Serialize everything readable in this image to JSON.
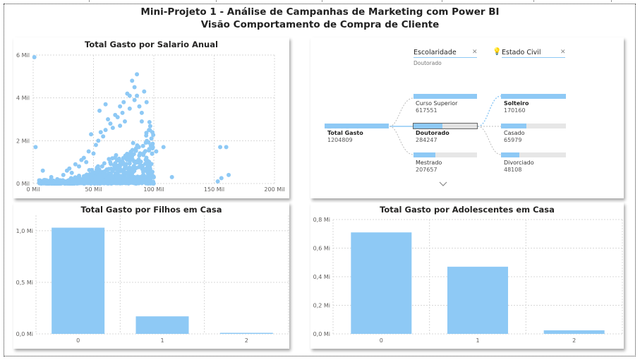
{
  "header": {
    "line1": "Mini-Projeto 1 - Análise de Campanhas de Marketing com Power BI",
    "line2": "Visão Comportamento de Compra de Cliente"
  },
  "colors": {
    "bar": "#8ec9f5",
    "grid": "#d8d8d8",
    "track": "#e6e6e6",
    "axis_text": "#605e5c"
  },
  "scatter": {
    "title": "Total Gasto por Salario Anual",
    "x_ticks": [
      "0 Mil",
      "50 Mil",
      "100 Mil",
      "150 Mil",
      "200 Mil"
    ],
    "y_ticks": [
      "0 Mil",
      "2 Mil",
      "4 Mil",
      "6 Mil"
    ]
  },
  "children_chart": {
    "title": "Total Gasto por Filhos em Casa",
    "y_ticks": [
      "0,0 Mi",
      "0,5 Mi",
      "1,0 Mi"
    ]
  },
  "teens_chart": {
    "title": "Total Gasto por Adolescentes em Casa",
    "y_ticks": [
      "0,0 Mi",
      "0,2 Mi",
      "0,4 Mi",
      "0,6 Mi",
      "0,8 Mi"
    ]
  },
  "decomposition": {
    "level1_header": "Escolaridade",
    "level1_selected": "Doutorado",
    "level2_header": "Estado Civil",
    "root": {
      "label": "Total Gasto",
      "value": "1204809"
    },
    "level1": [
      {
        "label": "Curso Superior",
        "value": "617551",
        "fraction": 1.0
      },
      {
        "label": "Doutorado",
        "value": "284247",
        "fraction": 0.46
      },
      {
        "label": "Mestrado",
        "value": "207657",
        "fraction": 0.34
      }
    ],
    "level2": [
      {
        "label": "Solteiro",
        "value": "170160",
        "fraction": 1.0
      },
      {
        "label": "Casado",
        "value": "65979",
        "fraction": 0.39
      },
      {
        "label": "Divorciado",
        "value": "48108",
        "fraction": 0.28
      }
    ]
  },
  "chart_data": [
    {
      "type": "scatter",
      "title": "Total Gasto por Salario Anual",
      "xlabel": "",
      "ylabel": "",
      "xlim": [
        0,
        200000
      ],
      "ylim": [
        0,
        6000
      ],
      "x_ticks": [
        "0 Mil",
        "50 Mil",
        "100 Mil",
        "150 Mil",
        "200 Mil"
      ],
      "y_ticks": [
        "0 Mil",
        "2 Mil",
        "4 Mil",
        "6 Mil"
      ],
      "grid": true,
      "points": [
        [
          1000,
          5900
        ],
        [
          2000,
          1700
        ],
        [
          5000,
          150
        ],
        [
          8000,
          600
        ],
        [
          10000,
          100
        ],
        [
          15000,
          300
        ],
        [
          20000,
          200
        ],
        [
          25000,
          400
        ],
        [
          28000,
          600
        ],
        [
          30000,
          700
        ],
        [
          32000,
          500
        ],
        [
          35000,
          900
        ],
        [
          38000,
          800
        ],
        [
          40000,
          1100
        ],
        [
          42000,
          1200
        ],
        [
          44000,
          1000
        ],
        [
          46000,
          1500
        ],
        [
          48000,
          2300
        ],
        [
          50000,
          1400
        ],
        [
          52000,
          1800
        ],
        [
          54000,
          2000
        ],
        [
          56000,
          2400
        ],
        [
          58000,
          2200
        ],
        [
          60000,
          2500
        ],
        [
          62000,
          3000
        ],
        [
          64000,
          2800
        ],
        [
          66000,
          2600
        ],
        [
          68000,
          3200
        ],
        [
          70000,
          3100
        ],
        [
          72000,
          2700
        ],
        [
          74000,
          3300
        ],
        [
          76000,
          2900
        ],
        [
          78000,
          4200
        ],
        [
          80000,
          3500
        ],
        [
          82000,
          4800
        ],
        [
          84000,
          4500
        ],
        [
          86000,
          4100
        ],
        [
          88000,
          3600
        ],
        [
          90000,
          2900
        ],
        [
          92000,
          4300
        ],
        [
          94000,
          3800
        ],
        [
          96000,
          2500
        ],
        [
          98000,
          2100
        ],
        [
          102000,
          1500
        ],
        [
          108000,
          1700
        ],
        [
          115000,
          300
        ],
        [
          155000,
          1700
        ],
        [
          160000,
          1700
        ],
        [
          153000,
          100
        ],
        [
          156000,
          250
        ],
        [
          162000,
          400
        ],
        [
          60000,
          3700
        ],
        [
          55000,
          3400
        ],
        [
          72000,
          3600
        ],
        [
          86000,
          5100
        ],
        [
          84000,
          3900
        ],
        [
          90000,
          3300
        ],
        [
          75000,
          3800
        ],
        [
          80000,
          4100
        ]
      ]
    },
    {
      "type": "bar",
      "title": "Total Gasto por Filhos em Casa",
      "categories": [
        "0",
        "1",
        "2"
      ],
      "values": [
        1030000,
        170000,
        10000
      ],
      "ylim": [
        0,
        1150000
      ]
    },
    {
      "type": "bar",
      "title": "Total Gasto por Adolescentes em Casa",
      "categories": [
        "0",
        "1",
        "2"
      ],
      "values": [
        710000,
        470000,
        25000
      ],
      "ylim": [
        0,
        800000
      ]
    }
  ]
}
